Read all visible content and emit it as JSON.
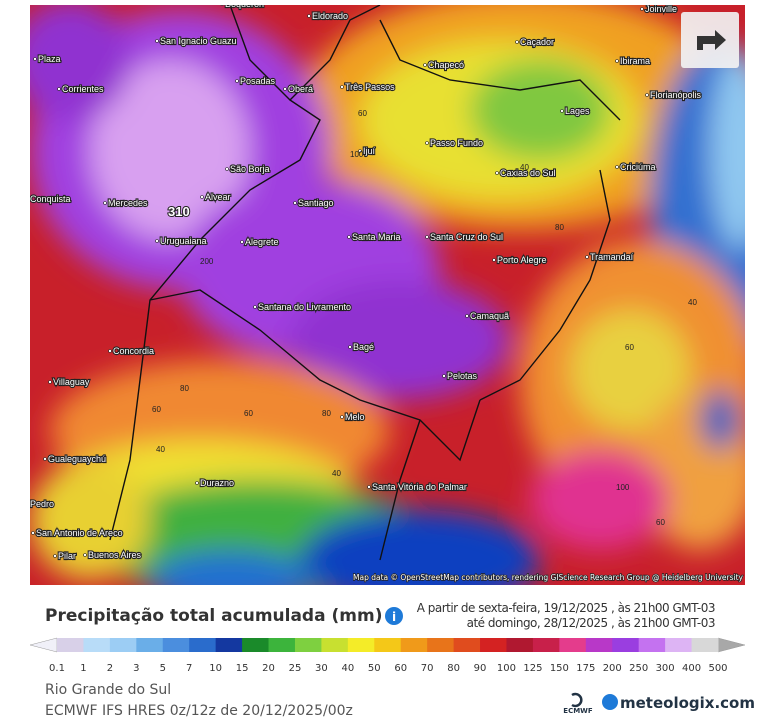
{
  "map": {
    "labels": [
      "Boqueron",
      "Eldorado",
      "Joinville",
      "San Ignacio Guazu",
      "Caçador",
      "Chapecó",
      "Ibirama",
      "Plaza",
      "Corrientes",
      "Posadas",
      "Oberá",
      "Três Passos",
      "Florianópolis",
      "Lages",
      "Ijuí",
      "Passo Fundo",
      "São Borja",
      "Criciúma",
      "Caxias do Sul",
      "Conquista",
      "Mercedes",
      "Alvear",
      "Santiago",
      "Santa Maria",
      "Santa Cruz do Sul",
      "Uruguaiana",
      "Alegrete",
      "Porto Alegre",
      "Tramandaí",
      "Santana do Livramento",
      "Camaquã",
      "Concordia",
      "Bagé",
      "Villaguay",
      "Pelotas",
      "Melo",
      "Gualeguaychú",
      "Durazno",
      "Santa Vitória do Palmar",
      "Buenos Aires",
      "San Antonio de Areco",
      "Pilar",
      "Pedro"
    ],
    "contour_labels": [
      310,
      200,
      100,
      60,
      40,
      80,
      40,
      60,
      80,
      60,
      40,
      40,
      100,
      60,
      80,
      60
    ],
    "attribution": "Map data © OpenStreetMap contributors, rendering GIScience Research Group @ Heidelberg University"
  },
  "legend": {
    "title": "Precipitação total acumulada (mm)",
    "period": [
      "A partir de sexta-feira, 19/12/2025 , às 21h00 GMT-03",
      "até domingo, 28/12/2025 , às 21h00 GMT-03"
    ],
    "ticks": [
      0.1,
      1,
      2,
      3,
      5,
      7,
      10,
      15,
      20,
      25,
      30,
      40,
      50,
      60,
      70,
      80,
      90,
      100,
      125,
      150,
      175,
      200,
      250,
      300,
      400,
      500
    ],
    "colors": [
      "#d8d0e8",
      "#b8dcf8",
      "#9ccdf4",
      "#6aaee8",
      "#4b8ede",
      "#2a6ccc",
      "#1438a0",
      "#1a8a2a",
      "#3cb43c",
      "#7ed040",
      "#c8e030",
      "#f4ec28",
      "#f4c818",
      "#f09a1a",
      "#e8741a",
      "#e04c1e",
      "#d42222",
      "#b01830",
      "#c8204a",
      "#e43c8c",
      "#b838c8",
      "#9a3ee0",
      "#c472f0",
      "#ddb4f4",
      "#d8d8d8"
    ],
    "under_color": "#f0f0f8",
    "over_color": "#a8a8a8"
  },
  "footer": {
    "region": "Rio Grande do Sul",
    "model": "ECMWF IFS HRES 0z/12z de 20/12/2025/00z",
    "ecmwf": "ECMWF",
    "brand": "meteologix.com"
  }
}
